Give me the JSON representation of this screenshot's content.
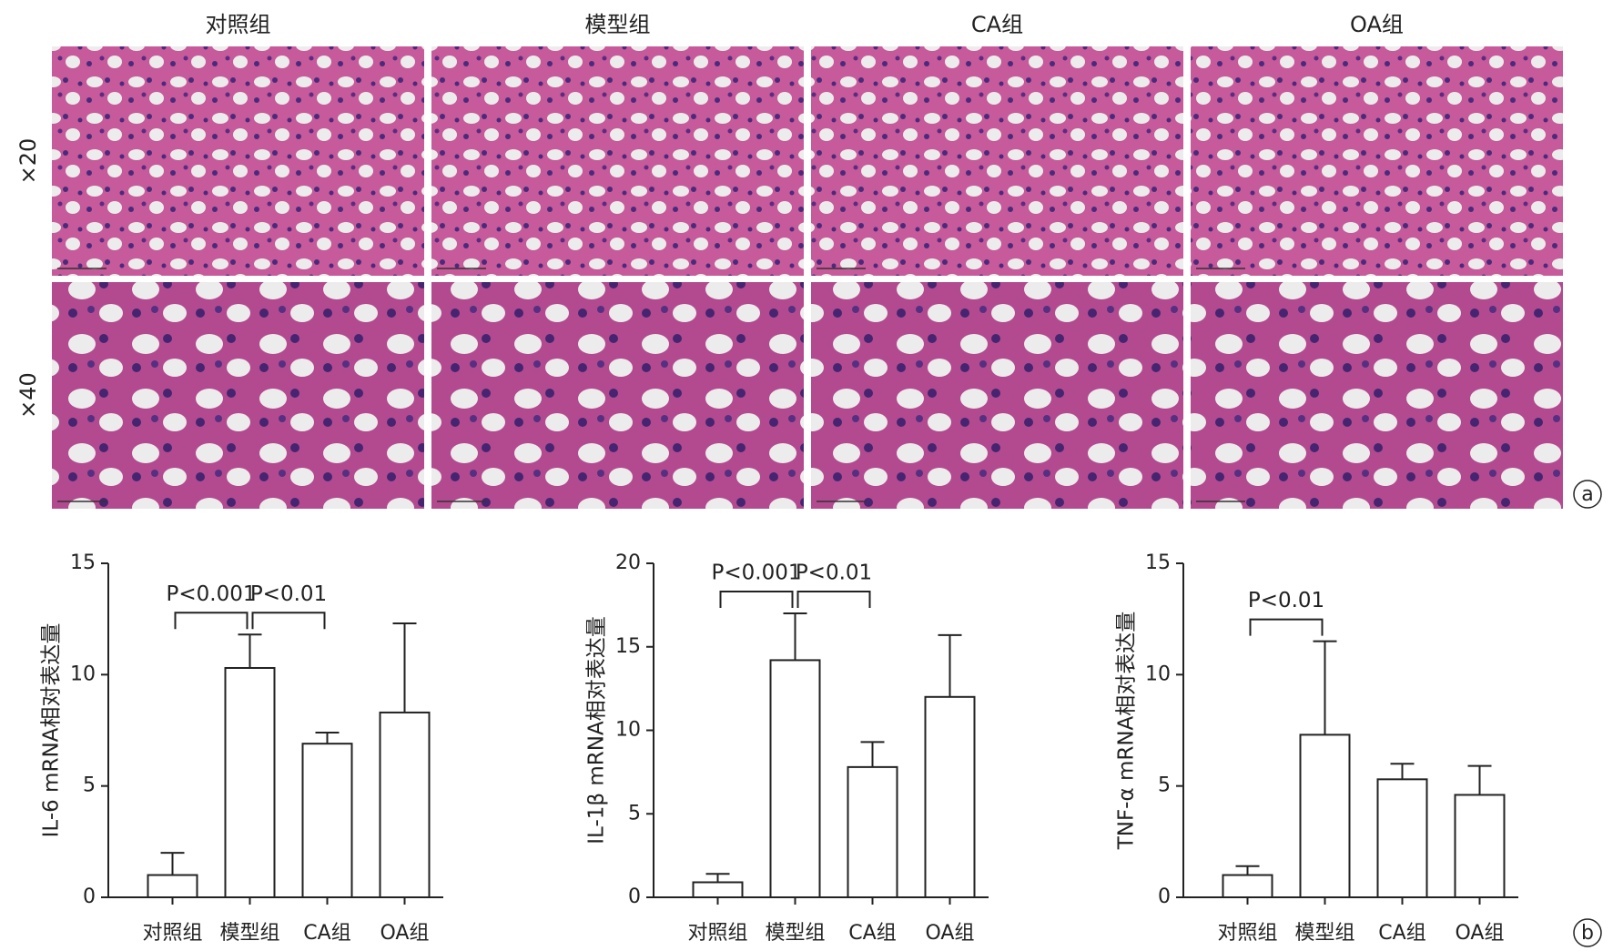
{
  "panel_a": {
    "columns": [
      "对照组",
      "模型组",
      "CA组",
      "OA组"
    ],
    "rows": [
      "×20",
      "×40"
    ],
    "label": "a"
  },
  "panel_b_label": "b",
  "chart_data": [
    {
      "type": "bar",
      "y_label": "IL-6 mRNA相对表达量",
      "categories": [
        "对照组",
        "模型组",
        "CA组",
        "OA组"
      ],
      "values": [
        1,
        10.3,
        6.9,
        8.3
      ],
      "errors": [
        1.0,
        1.5,
        0.5,
        4.0
      ],
      "color": "#ffffff",
      "ylim": [
        0,
        15
      ],
      "yticks": [
        0,
        5,
        10,
        15
      ],
      "annotations": [
        {
          "from": 0,
          "to": 1,
          "text": "P<0.001"
        },
        {
          "from": 1,
          "to": 2,
          "text": "P<0.01"
        }
      ]
    },
    {
      "type": "bar",
      "y_label": "IL-1β mRNA相对表达量",
      "categories": [
        "对照组",
        "模型组",
        "CA组",
        "OA组"
      ],
      "values": [
        0.9,
        14.2,
        7.8,
        12.0
      ],
      "errors": [
        0.5,
        2.8,
        1.5,
        3.7
      ],
      "color": "#ffffff",
      "ylim": [
        0,
        20
      ],
      "yticks": [
        0,
        5,
        10,
        15,
        20
      ],
      "annotations": [
        {
          "from": 0,
          "to": 1,
          "text": "P<0.001"
        },
        {
          "from": 1,
          "to": 2,
          "text": "P<0.01"
        }
      ]
    },
    {
      "type": "bar",
      "y_label": "TNF-α mRNA相对表达量",
      "categories": [
        "对照组",
        "模型组",
        "CA组",
        "OA组"
      ],
      "values": [
        1.0,
        7.3,
        5.3,
        4.6
      ],
      "errors": [
        0.4,
        4.2,
        0.7,
        1.3
      ],
      "color": "#ffffff",
      "ylim": [
        0,
        15
      ],
      "yticks": [
        0,
        5,
        10,
        15
      ],
      "annotations": [
        {
          "from": 0,
          "to": 1,
          "text": "P<0.01"
        }
      ]
    }
  ]
}
